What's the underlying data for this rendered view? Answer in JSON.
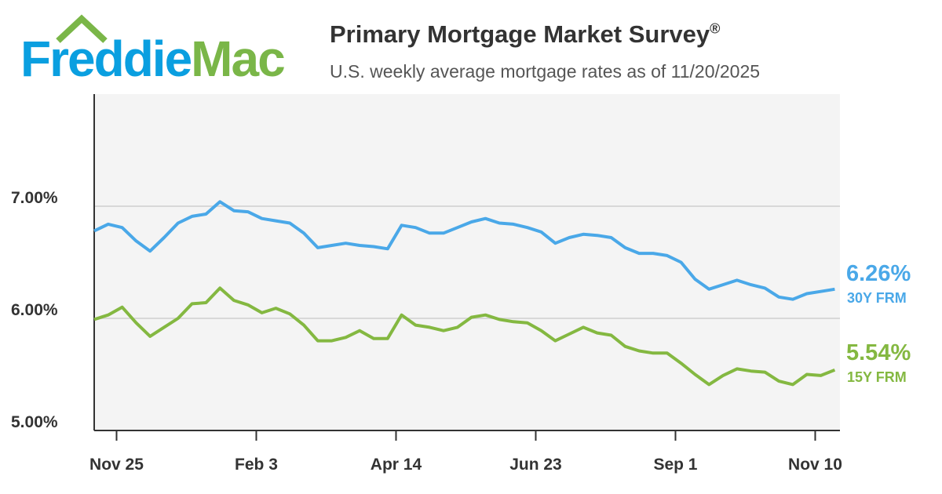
{
  "logo": {
    "part1": "Freddie",
    "part2": "Mac"
  },
  "header": {
    "title": "Primary Mortgage Market Survey",
    "title_mark": "®",
    "subtitle": "U.S. weekly average mortgage rates as of 11/20/2025"
  },
  "colors": {
    "blue": "#4aa8e8",
    "green": "#84b841",
    "logo_blue": "#0a9fe0",
    "logo_green": "#7ab648"
  },
  "chart_data": {
    "type": "line",
    "title": "Primary Mortgage Market Survey",
    "ylim": [
      5,
      8
    ],
    "yticks": [
      {
        "v": 7,
        "label": "7.00%"
      },
      {
        "v": 6,
        "label": "6.00%"
      },
      {
        "v": 5,
        "label": "5.00%"
      }
    ],
    "xticks": [
      {
        "i": 1.6,
        "label": "Nov 25"
      },
      {
        "i": 11.6,
        "label": "Feb 3"
      },
      {
        "i": 21.6,
        "label": "Apr 14"
      },
      {
        "i": 31.6,
        "label": "Jun 23"
      },
      {
        "i": 41.6,
        "label": "Sep 1"
      },
      {
        "i": 51.6,
        "label": "Nov 10"
      }
    ],
    "series": [
      {
        "name": "30Y FRM",
        "end_label": "6.26%",
        "color": "#4aa8e8",
        "values": [
          6.78,
          6.84,
          6.81,
          6.69,
          6.6,
          6.72,
          6.85,
          6.91,
          6.93,
          7.04,
          6.96,
          6.95,
          6.89,
          6.87,
          6.85,
          6.76,
          6.63,
          6.65,
          6.67,
          6.65,
          6.64,
          6.62,
          6.83,
          6.81,
          6.76,
          6.76,
          6.81,
          6.86,
          6.89,
          6.85,
          6.84,
          6.81,
          6.77,
          6.67,
          6.72,
          6.75,
          6.74,
          6.72,
          6.63,
          6.58,
          6.58,
          6.56,
          6.5,
          6.35,
          6.26,
          6.3,
          6.34,
          6.3,
          6.27,
          6.19,
          6.17,
          6.22,
          6.24,
          6.26
        ]
      },
      {
        "name": "15Y FRM",
        "end_label": "5.54%",
        "color": "#84b841",
        "values": [
          5.99,
          6.03,
          6.1,
          5.96,
          5.84,
          5.92,
          6.0,
          6.13,
          6.14,
          6.27,
          6.16,
          6.12,
          6.05,
          6.09,
          6.04,
          5.94,
          5.8,
          5.8,
          5.83,
          5.89,
          5.82,
          5.82,
          6.03,
          5.94,
          5.92,
          5.89,
          5.92,
          6.01,
          6.03,
          5.99,
          5.97,
          5.96,
          5.89,
          5.8,
          5.86,
          5.92,
          5.87,
          5.85,
          5.75,
          5.71,
          5.69,
          5.69,
          5.6,
          5.5,
          5.41,
          5.49,
          5.55,
          5.53,
          5.52,
          5.44,
          5.41,
          5.5,
          5.49,
          5.54
        ]
      }
    ]
  }
}
